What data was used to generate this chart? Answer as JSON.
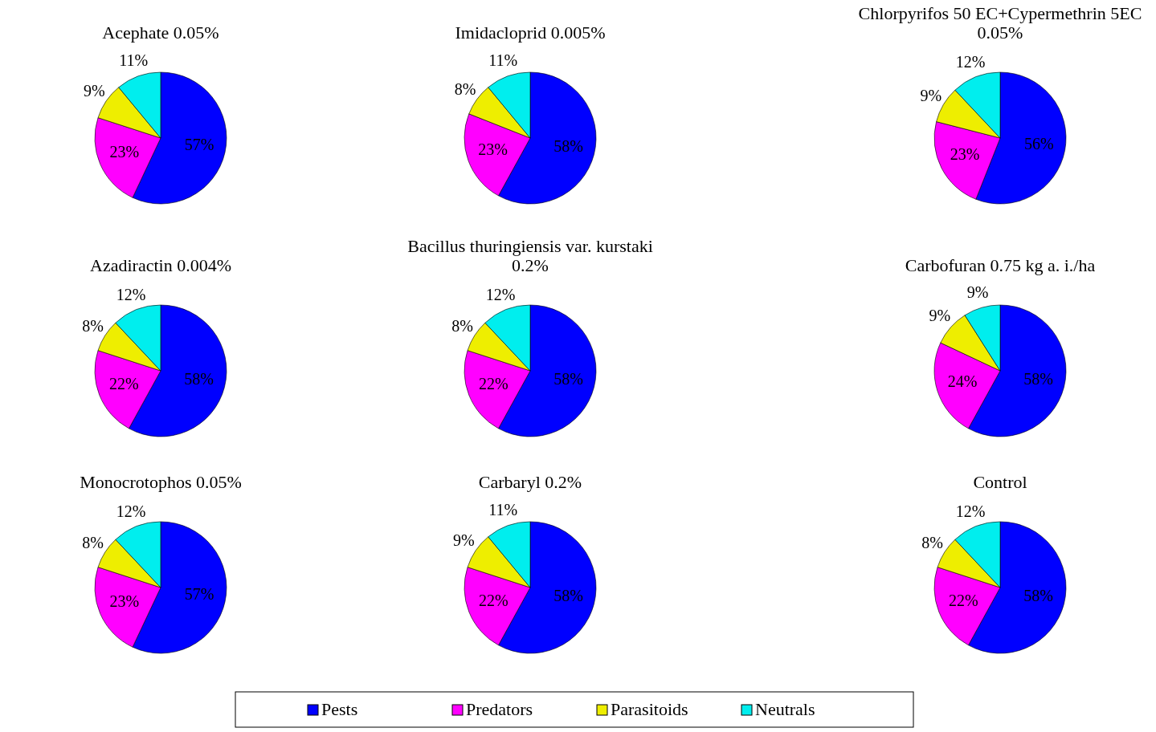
{
  "chart_data": [
    {
      "type": "pie",
      "title": "Acephate 0.05%",
      "categories": [
        null,
        null,
        null,
        null
      ],
      "values": [
        57,
        23,
        9,
        11
      ],
      "value_labels": [
        "57%",
        "23%",
        "9%",
        "11%"
      ],
      "colors": [
        "#0000ff",
        "#ff00ff",
        "#eeee00",
        "#00eeee"
      ]
    },
    {
      "type": "pie",
      "title": "Imidacloprid 0.005%",
      "categories": [
        null,
        null,
        null,
        null
      ],
      "values": [
        58,
        23,
        8,
        11
      ],
      "value_labels": [
        "58%",
        "23%",
        "8%",
        "11%"
      ],
      "colors": [
        "#0000ff",
        "#ff00ff",
        "#eeee00",
        "#00eeee"
      ]
    },
    {
      "type": "pie",
      "title": "Chlorpyrifos 50  EC+Cypermethrin 5EC 0.05%",
      "categories": [
        null,
        null,
        null,
        null
      ],
      "values": [
        56,
        23,
        9,
        12
      ],
      "value_labels": [
        "56%",
        "23%",
        "9%",
        "12%"
      ],
      "colors": [
        "#0000ff",
        "#ff00ff",
        "#eeee00",
        "#00eeee"
      ]
    },
    {
      "type": "pie",
      "title": "Azadiractin 0.004%",
      "categories": [
        null,
        null,
        null,
        null
      ],
      "values": [
        58,
        22,
        8,
        12
      ],
      "value_labels": [
        "58%",
        "22%",
        "8%",
        "12%"
      ],
      "colors": [
        "#0000ff",
        "#ff00ff",
        "#eeee00",
        "#00eeee"
      ]
    },
    {
      "type": "pie",
      "title": "Bacillus thuringiensis var. kurstaki 0.2%",
      "categories": [
        null,
        null,
        null,
        null
      ],
      "values": [
        58,
        22,
        8,
        12
      ],
      "value_labels": [
        "58%",
        "22%",
        "8%",
        "12%"
      ],
      "colors": [
        "#0000ff",
        "#ff00ff",
        "#eeee00",
        "#00eeee"
      ]
    },
    {
      "type": "pie",
      "title": "Carbofuran 0.75 kg a. i./ha",
      "categories": [
        null,
        null,
        null,
        null
      ],
      "values": [
        58,
        24,
        9,
        9
      ],
      "value_labels": [
        "58%",
        "24%",
        "9%",
        "9%"
      ],
      "colors": [
        "#0000ff",
        "#ff00ff",
        "#eeee00",
        "#00eeee"
      ]
    },
    {
      "type": "pie",
      "title": "Monocrotophos 0.05%",
      "categories": [
        null,
        null,
        null,
        null
      ],
      "values": [
        57,
        23,
        8,
        12
      ],
      "value_labels": [
        "57%",
        "23%",
        "8%",
        "12%"
      ],
      "colors": [
        "#0000ff",
        "#ff00ff",
        "#eeee00",
        "#00eeee"
      ]
    },
    {
      "type": "pie",
      "title": "Carbaryl 0.2%",
      "categories": [
        "Pests",
        "Predators",
        "Parasitoids",
        "Neutrals"
      ],
      "values": [
        58,
        22,
        9,
        11
      ],
      "value_labels": [
        "58%",
        "22%",
        "9%",
        "11%"
      ],
      "colors": [
        "#0000ff",
        "#ff00ff",
        "#eeee00",
        "#00eeee"
      ],
      "legend": "bottom"
    },
    {
      "type": "pie",
      "title": "Control",
      "categories": [
        null,
        null,
        null,
        null
      ],
      "values": [
        58,
        22,
        8,
        12
      ],
      "value_labels": [
        "58%",
        "22%",
        "8%",
        "12%"
      ],
      "colors": [
        "#0000ff",
        "#ff00ff",
        "#eeee00",
        "#00eeee"
      ]
    }
  ]
}
